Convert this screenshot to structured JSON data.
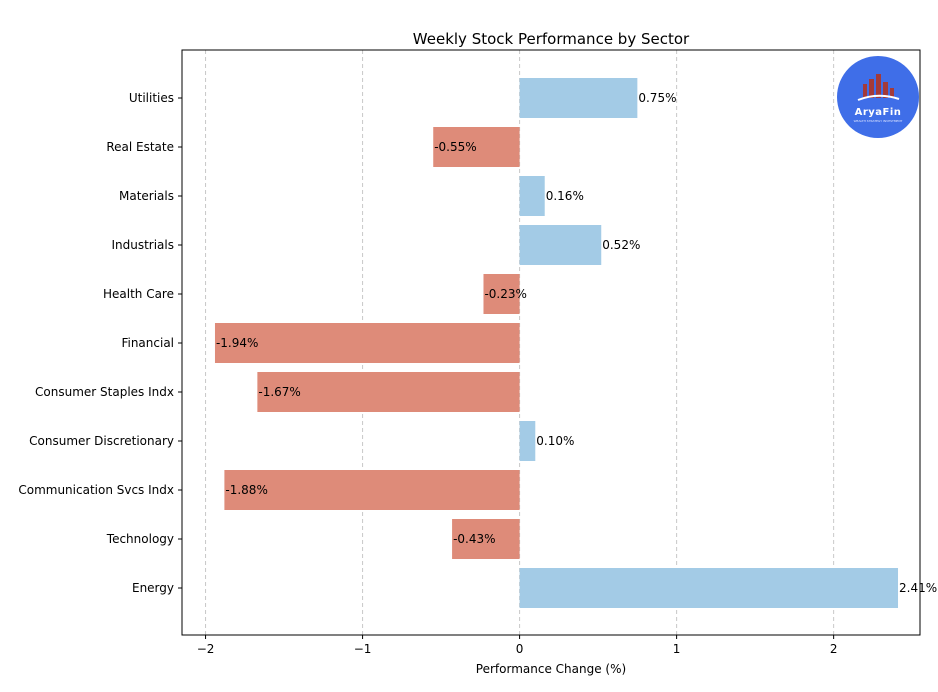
{
  "chart_data": {
    "type": "bar",
    "orientation": "horizontal",
    "title": "Weekly Stock Performance by Sector",
    "xlabel": "Performance Change (%)",
    "ylabel": "",
    "xlim": [
      -2.15,
      2.55
    ],
    "xticks": [
      -2,
      -1,
      0,
      1,
      2
    ],
    "xtick_labels": [
      "−2",
      "−1",
      "0",
      "1",
      "2"
    ],
    "grid": "x-dashed",
    "categories": [
      "Utilities",
      "Real Estate",
      "Materials",
      "Industrials",
      "Health Care",
      "Financial",
      "Consumer Staples Indx",
      "Consumer Discretionary",
      "Communication Svcs Indx",
      "Technology",
      "Energy"
    ],
    "values": [
      0.75,
      -0.55,
      0.16,
      0.52,
      -0.23,
      -1.94,
      -1.67,
      0.1,
      -1.88,
      -0.43,
      2.41
    ],
    "value_labels": [
      "0.75%",
      "-0.55%",
      "0.16%",
      "0.52%",
      "-0.23%",
      "-1.94%",
      "-1.67%",
      "0.10%",
      "-1.88%",
      "-0.43%",
      "2.41%"
    ],
    "colors": {
      "positive": "#a3cbe6",
      "negative": "#de8b79"
    }
  },
  "logo": {
    "name": "AryaFin",
    "tagline": "WEALTH STRATEGY INVESTMENT",
    "bg_color": "#3f6ee8",
    "mark_color": "#a33a3a"
  }
}
